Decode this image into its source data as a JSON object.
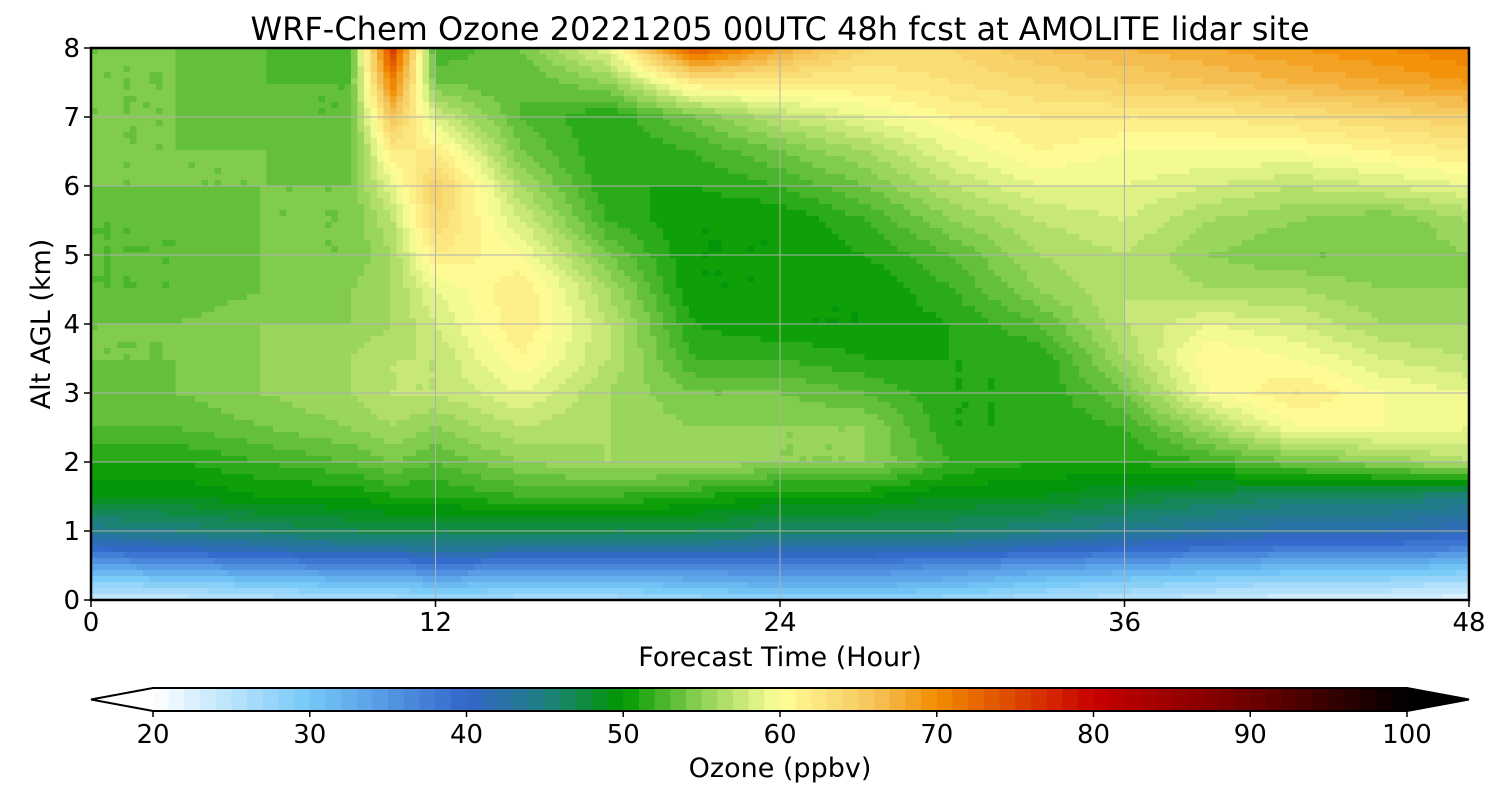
{
  "chart_data": {
    "type": "heatmap",
    "title": "WRF-Chem Ozone  20221205 00UTC 48h fcst at AMOLITE lidar site",
    "xlabel": "Forecast Time (Hour)",
    "ylabel": "Alt AGL (km)",
    "xlim": [
      0,
      48
    ],
    "ylim": [
      0,
      8
    ],
    "x_ticks": [
      0,
      12,
      24,
      36,
      48
    ],
    "y_ticks": [
      0,
      1,
      2,
      3,
      4,
      5,
      6,
      7,
      8
    ],
    "grid": true,
    "value_units": "ppbv",
    "x": [
      0,
      3,
      6,
      9,
      10.5,
      12,
      15,
      18,
      21,
      24,
      27,
      30,
      33,
      36,
      39,
      42,
      45,
      48
    ],
    "y": [
      0,
      0.25,
      0.5,
      0.75,
      1,
      1.5,
      2,
      2.5,
      3,
      3.5,
      4,
      4.5,
      5,
      5.5,
      6,
      6.5,
      7,
      7.5,
      8
    ],
    "z": [
      [
        24,
        24,
        25,
        26,
        26,
        27,
        26,
        26,
        27,
        28,
        28,
        27,
        26,
        25,
        24,
        23,
        23,
        22
      ],
      [
        28,
        29,
        30,
        31,
        31,
        32,
        31,
        31,
        32,
        33,
        33,
        32,
        30,
        29,
        28,
        27,
        27,
        26
      ],
      [
        34,
        35,
        36,
        37,
        37,
        38,
        37,
        37,
        37,
        37,
        37,
        36,
        35,
        34,
        33,
        32,
        32,
        31
      ],
      [
        40,
        41,
        42,
        43,
        43,
        44,
        43,
        43,
        43,
        42,
        42,
        42,
        41,
        40,
        39,
        38,
        38,
        37
      ],
      [
        44,
        45,
        46,
        47,
        47,
        47,
        47,
        47,
        47,
        46,
        46,
        46,
        45,
        44,
        43,
        42,
        42,
        41
      ],
      [
        49,
        49,
        50,
        50,
        51,
        51,
        52,
        52,
        51,
        50,
        50,
        49,
        49,
        48,
        47,
        46,
        46,
        45
      ],
      [
        51,
        51,
        52,
        53,
        54,
        53,
        55,
        56,
        56,
        55,
        55,
        52,
        51,
        51,
        52,
        54,
        55,
        57
      ],
      [
        53,
        53,
        54,
        55,
        56,
        55,
        57,
        56,
        55,
        55,
        55,
        51,
        51,
        52,
        56,
        60,
        60,
        59
      ],
      [
        53,
        54,
        55,
        56,
        57,
        57,
        59,
        56,
        54,
        54,
        53,
        51,
        51,
        54,
        60,
        62,
        60,
        59
      ],
      [
        54,
        54,
        55,
        56,
        57,
        57,
        61,
        57,
        52,
        52,
        51,
        51,
        51,
        56,
        61,
        60,
        58,
        57
      ],
      [
        54,
        54,
        55,
        55,
        56,
        58,
        62,
        57,
        51,
        50,
        50,
        51,
        53,
        57,
        59,
        58,
        56,
        56
      ],
      [
        53,
        53,
        54,
        55,
        56,
        59,
        62,
        56,
        50,
        50,
        50,
        52,
        55,
        57,
        56,
        56,
        55,
        55
      ],
      [
        53,
        53,
        54,
        54,
        56,
        62,
        60,
        54,
        50,
        50,
        51,
        53,
        56,
        57,
        55,
        54,
        54,
        55
      ],
      [
        53,
        53,
        54,
        54,
        57,
        64,
        58,
        52,
        50,
        50,
        52,
        55,
        57,
        58,
        56,
        55,
        54,
        56
      ],
      [
        54,
        54,
        54,
        54,
        59,
        65,
        56,
        51,
        51,
        52,
        54,
        57,
        59,
        59,
        58,
        57,
        58,
        59
      ],
      [
        54,
        54,
        54,
        53,
        62,
        62,
        54,
        51,
        52,
        54,
        56,
        59,
        61,
        60,
        60,
        60,
        61,
        62
      ],
      [
        54,
        54,
        53,
        53,
        66,
        58,
        53,
        51,
        54,
        57,
        59,
        61,
        62,
        62,
        62,
        63,
        64,
        65
      ],
      [
        54,
        54,
        53,
        53,
        71,
        54,
        53,
        55,
        62,
        62,
        62,
        63,
        64,
        65,
        66,
        67,
        68,
        69
      ],
      [
        54,
        54,
        53,
        52,
        76,
        52,
        54,
        59,
        74,
        68,
        64,
        64,
        66,
        67,
        68,
        69,
        70,
        71
      ]
    ],
    "colorbar": {
      "label": "Ozone  (ppbv)",
      "min": 20,
      "max": 100,
      "step": 1,
      "extend": "both",
      "tick_values": [
        20,
        30,
        40,
        50,
        60,
        70,
        80,
        90,
        100
      ],
      "color_stops": [
        {
          "v": 20,
          "c": "#ffffff"
        },
        {
          "v": 30,
          "c": "#74c8f8"
        },
        {
          "v": 40,
          "c": "#3366cc"
        },
        {
          "v": 45,
          "c": "#1f7f80"
        },
        {
          "v": 50,
          "c": "#009900"
        },
        {
          "v": 55,
          "c": "#8fd056"
        },
        {
          "v": 60,
          "c": "#ffff99"
        },
        {
          "v": 66,
          "c": "#f5c45a"
        },
        {
          "v": 70,
          "c": "#f28c00"
        },
        {
          "v": 80,
          "c": "#c80000"
        },
        {
          "v": 90,
          "c": "#6e0000"
        },
        {
          "v": 100,
          "c": "#000000"
        }
      ]
    }
  }
}
